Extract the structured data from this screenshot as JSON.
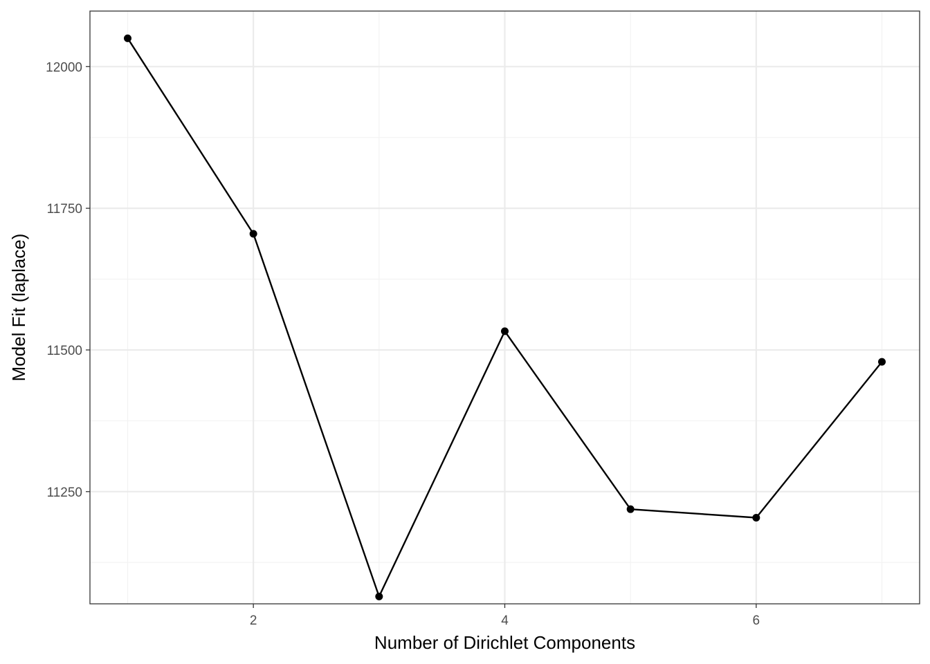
{
  "chart_data": {
    "type": "line",
    "title": "",
    "xlabel": "Number of Dirichlet Components",
    "ylabel": "Model Fit (laplace)",
    "x": [
      1,
      2,
      3,
      4,
      5,
      6,
      7
    ],
    "series": [
      {
        "values": [
          12050,
          11705,
          11065,
          11533,
          11219,
          11204,
          11479
        ],
        "color": "#000000"
      }
    ],
    "xlim": [
      0.7,
      7.3
    ],
    "ylim": [
      11052,
      12098
    ],
    "xticks": [
      2,
      4,
      6
    ],
    "xtick_labels": [
      "2",
      "4",
      "6"
    ],
    "yticks": [
      11250,
      11500,
      11750,
      12000
    ],
    "ytick_labels": [
      "11250",
      "11500",
      "11750",
      "12000"
    ],
    "grid": true,
    "legend": "none"
  }
}
